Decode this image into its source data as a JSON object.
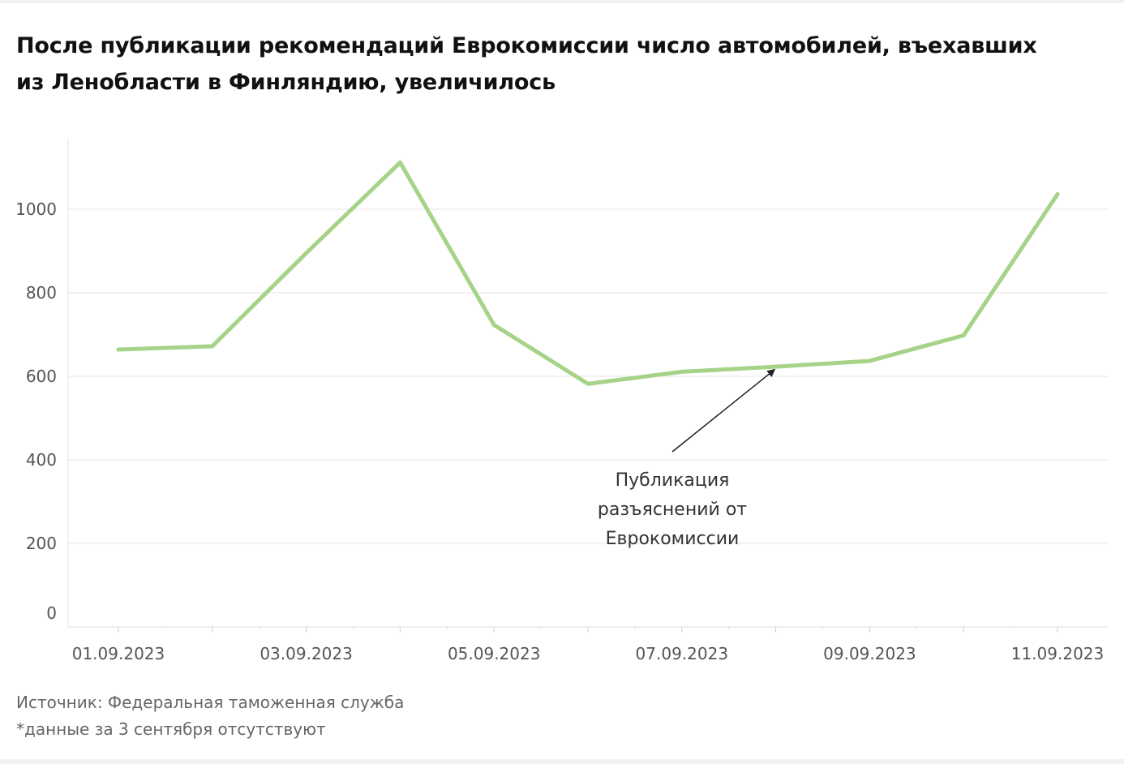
{
  "title": "После публикации рекомендаций Еврокомиссии число автомобилей, въехавших из Ленобласти в Финляндию, увеличилось",
  "footer": {
    "source": "Источник: Федеральная таможенная служба",
    "note": "*данные за 3 сентября отсутствуют"
  },
  "colors": {
    "line": "#a6d388",
    "grid": "#e6e6e6",
    "axis_text": "#555555",
    "annotation": "#222222"
  },
  "chart_data": {
    "type": "line",
    "title": "После публикации рекомендаций Еврокомиссии число автомобилей, въехавших из Ленобласти в Финляндию, увеличилось",
    "xlabel": "",
    "ylabel": "",
    "categories": [
      "01.09.2023",
      "02.09.2023",
      "03.09.2023",
      "04.09.2023",
      "05.09.2023",
      "06.09.2023",
      "07.09.2023",
      "08.09.2023",
      "09.09.2023",
      "10.09.2023",
      "11.09.2023"
    ],
    "x_tick_labels": [
      "01.09.2023",
      "03.09.2023",
      "05.09.2023",
      "07.09.2023",
      "09.09.2023",
      "11.09.2023"
    ],
    "y_ticks": [
      0,
      200,
      400,
      600,
      800,
      1000
    ],
    "ylim": [
      0,
      1170
    ],
    "grid": true,
    "legend": "none",
    "series": [
      {
        "values": [
          664,
          672,
          895,
          1112,
          723,
          582,
          611,
          623,
          637,
          698,
          1036
        ]
      }
    ],
    "annotations": [
      {
        "text_lines": [
          "Публикация",
          "разъяснений от",
          "Еврокомиссии"
        ],
        "x": "08.09.2023",
        "y": 623
      }
    ]
  }
}
